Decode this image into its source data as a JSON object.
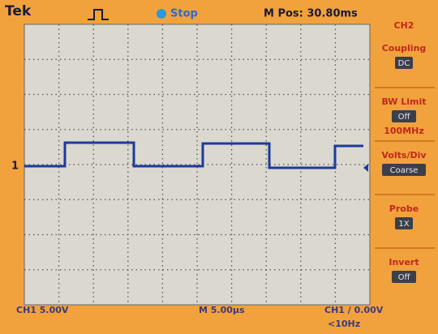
{
  "header": {
    "brand": "Tek",
    "status": "Stop",
    "position": "M Pos: 30.80ms"
  },
  "channel_marker": "1",
  "side_menu": {
    "title": "CH2",
    "items": [
      {
        "label": "Coupling",
        "value": "DC"
      },
      {
        "label": "BW Limit",
        "value": "Off",
        "note": "100MHz"
      },
      {
        "label": "Volts/Div",
        "value": "Coarse"
      },
      {
        "label": "Probe",
        "value": "1X"
      },
      {
        "label": "Invert",
        "value": "Off"
      }
    ]
  },
  "footer": {
    "channel": "CH1 5.00V",
    "timebase": "M 5.00µs",
    "trigger": "CH1 ∕ 0.00V",
    "frequency": "<10Hz"
  }
}
